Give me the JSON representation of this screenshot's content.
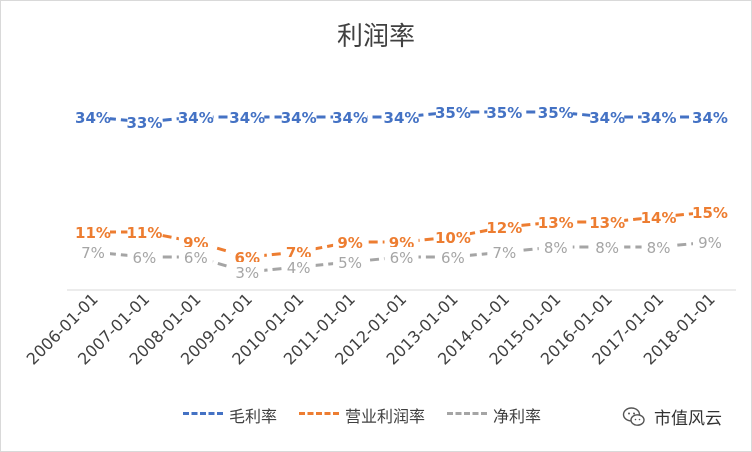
{
  "chart_data": {
    "type": "line",
    "title": "利润率",
    "categories": [
      "2006-01-01",
      "2007-01-01",
      "2008-01-01",
      "2009-01-01",
      "2010-01-01",
      "2011-01-01",
      "2012-01-01",
      "2013-01-01",
      "2014-01-01",
      "2015-01-01",
      "2016-01-01",
      "2017-01-01",
      "2018-01-01"
    ],
    "series": [
      {
        "name": "毛利率",
        "color": "#4472c4",
        "values": [
          34,
          33,
          34,
          34,
          34,
          34,
          34,
          35,
          35,
          35,
          34,
          34,
          34
        ]
      },
      {
        "name": "营业利润率",
        "color": "#ed7d31",
        "values": [
          11,
          11,
          9,
          6,
          7,
          9,
          9,
          10,
          12,
          13,
          13,
          14,
          15
        ]
      },
      {
        "name": "净利率",
        "color": "#a5a5a5",
        "values": [
          7,
          6,
          6,
          3,
          4,
          5,
          6,
          6,
          7,
          8,
          8,
          8,
          9
        ]
      }
    ],
    "value_format": "percent",
    "line_style": "dashed",
    "grid": false,
    "legend": "bottom"
  },
  "watermark": {
    "text": "市值风云",
    "icon": "wechat-icon"
  }
}
